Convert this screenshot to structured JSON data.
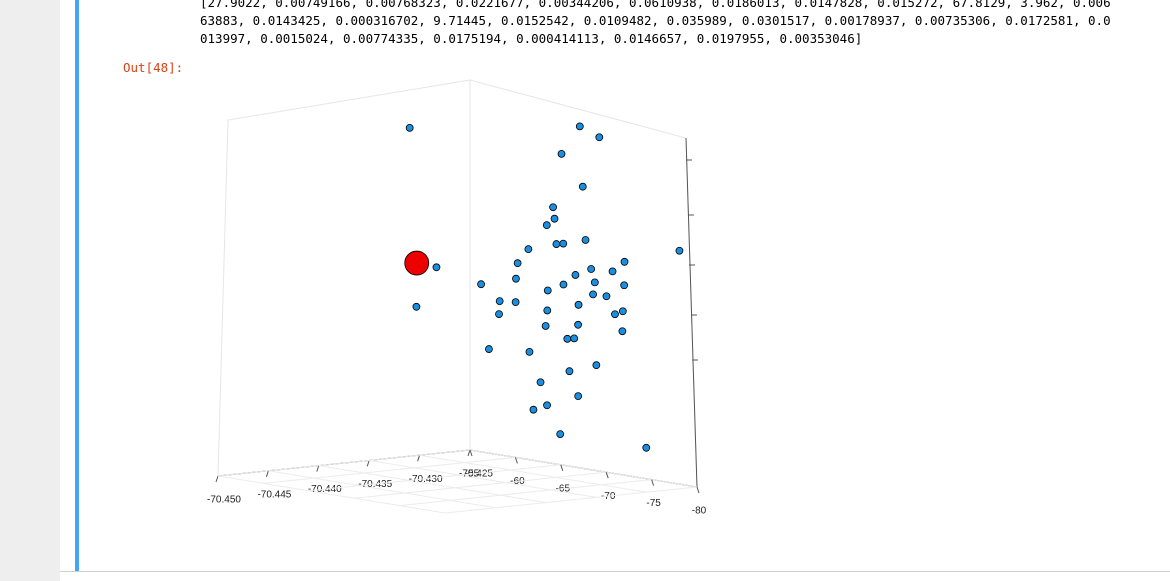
{
  "output": {
    "lines": [
      "[27.9022, 0.00749166, 0.00768323, 0.0221677, 0.00344206, 0.0610938, 0.0186013, 0.0147828, 0.015272, 67.8129, 3.962, 0.006",
      "63883, 0.0143425, 0.000316702, 9.71445, 0.0152542, 0.0109482, 0.035989, 0.0301517, 0.00178937, 0.00735306, 0.0172581, 0.0",
      "013997, 0.0015024, 0.00774335, 0.0175194, 0.000414113, 0.0146657, 0.0197955, 0.00353046]"
    ],
    "prompt": "Out[48]:"
  },
  "chart_data": {
    "type": "scatter3d",
    "xlim": [
      -70.45,
      -70.425
    ],
    "xticks": [
      {
        "value": -70.45,
        "label": "-70.450"
      },
      -70.445,
      {
        "value": -70.44,
        "label": "-70.440"
      },
      -70.435,
      {
        "value": -70.43,
        "label": "-70.430"
      },
      -70.425
    ],
    "ylim": [
      -55,
      -80
    ],
    "yticks": [
      -55,
      -60,
      -65,
      -70,
      -75,
      -80
    ],
    "zlim": [
      0,
      10
    ],
    "grid": true,
    "series": [
      {
        "color": "#1a8ee0",
        "marker_size": 7,
        "x": [
          -70.432,
          -70.431,
          -70.433,
          -70.43,
          -70.434,
          -70.429,
          -70.432,
          -70.435,
          -70.431,
          -70.433,
          -70.43,
          -70.428,
          -70.436,
          -70.434,
          -70.432,
          -70.431,
          -70.433,
          -70.429,
          -70.435,
          -70.432,
          -70.43,
          -70.434,
          -70.431,
          -70.433,
          -70.436,
          -70.428,
          -70.432,
          -70.43,
          -70.437,
          -70.429,
          -70.434,
          -70.431,
          -70.433,
          -70.432,
          -70.435,
          -70.427,
          -70.438,
          -70.431,
          -70.43,
          -70.432,
          -70.438,
          -70.431,
          -70.43,
          -70.434,
          -70.437,
          -70.426,
          -70.433,
          -70.432,
          -70.436,
          -70.429
        ],
        "y": [
          -72,
          -74,
          -73,
          -75,
          -71,
          -76,
          -77,
          -70,
          -72,
          -75,
          -73,
          -74,
          -73,
          -76,
          -74,
          -71,
          -78,
          -72,
          -75,
          -73,
          -77,
          -72,
          -76,
          -74,
          -71,
          -76,
          -70,
          -78,
          -74,
          -73,
          -77,
          -73,
          -72,
          -75,
          -68,
          -75,
          -72,
          -79,
          -74,
          -74,
          -64,
          -75,
          -76,
          -62,
          -63,
          -80,
          -74,
          -70,
          -76,
          -79
        ],
        "z": [
          5.5,
          6.0,
          5.0,
          5.8,
          6.3,
          4.9,
          5.6,
          5.2,
          6.8,
          7.0,
          4.5,
          5.3,
          6.0,
          5.9,
          4.2,
          7.3,
          6.4,
          5.0,
          4.7,
          7.6,
          6.2,
          3.8,
          3.5,
          8.0,
          4.9,
          5.7,
          6.6,
          5.1,
          5.4,
          6.9,
          4.4,
          3.2,
          2.9,
          2.6,
          5.6,
          6.3,
          4.0,
          4.6,
          8.5,
          9.5,
          10.0,
          10.3,
          10.0,
          5.8,
          4.8,
          6.8,
          1.5,
          2.0,
          2.5,
          1.2
        ]
      },
      {
        "color": "#ee0000",
        "marker_size": 24,
        "x": [
          -70.4375
        ],
        "y": [
          -63.75
        ],
        "z": [
          6.1
        ]
      }
    ]
  }
}
